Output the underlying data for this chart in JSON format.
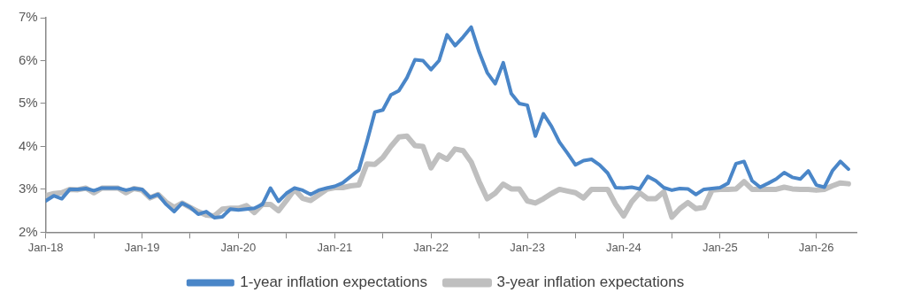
{
  "chart_data": {
    "type": "line",
    "x": [
      "2018-01",
      "2018-02",
      "2018-03",
      "2018-04",
      "2018-05",
      "2018-06",
      "2018-07",
      "2018-08",
      "2018-09",
      "2018-10",
      "2018-11",
      "2018-12",
      "2019-01",
      "2019-02",
      "2019-03",
      "2019-04",
      "2019-05",
      "2019-06",
      "2019-07",
      "2019-08",
      "2019-09",
      "2019-10",
      "2019-11",
      "2019-12",
      "2020-01",
      "2020-02",
      "2020-03",
      "2020-04",
      "2020-05",
      "2020-06",
      "2020-07",
      "2020-08",
      "2020-09",
      "2020-10",
      "2020-11",
      "2020-12",
      "2021-01",
      "2021-02",
      "2021-03",
      "2021-04",
      "2021-05",
      "2021-06",
      "2021-07",
      "2021-08",
      "2021-09",
      "2021-10",
      "2021-11",
      "2021-12",
      "2022-01",
      "2022-02",
      "2022-03",
      "2022-04",
      "2022-05",
      "2022-06",
      "2022-07",
      "2022-08",
      "2022-09",
      "2022-10",
      "2022-11",
      "2022-12",
      "2023-01",
      "2023-02",
      "2023-03",
      "2023-04",
      "2023-05",
      "2023-06",
      "2023-07",
      "2023-08",
      "2023-09",
      "2023-10",
      "2023-11",
      "2023-12",
      "2024-01",
      "2024-02",
      "2024-03",
      "2024-04",
      "2024-05",
      "2024-06",
      "2024-07",
      "2024-08",
      "2024-09",
      "2024-10",
      "2024-11",
      "2024-12",
      "2025-01",
      "2025-02",
      "2025-03",
      "2025-04",
      "2025-05",
      "2025-06",
      "2025-07",
      "2025-08",
      "2025-09",
      "2025-10",
      "2025-11",
      "2025-12",
      "2026-01",
      "2026-02",
      "2026-03",
      "2026-04",
      "2026-05"
    ],
    "series": [
      {
        "name": "1-year inflation expectations",
        "color": "#4a86c8",
        "values": [
          2.73,
          2.85,
          2.78,
          3.0,
          3.0,
          3.02,
          2.97,
          3.03,
          3.03,
          3.03,
          2.98,
          3.02,
          3.0,
          2.81,
          2.88,
          2.65,
          2.48,
          2.68,
          2.58,
          2.42,
          2.48,
          2.34,
          2.36,
          2.54,
          2.52,
          2.54,
          2.56,
          2.65,
          3.03,
          2.72,
          2.91,
          3.03,
          2.98,
          2.88,
          2.98,
          3.03,
          3.07,
          3.15,
          3.3,
          3.45,
          4.1,
          4.8,
          4.85,
          5.2,
          5.3,
          5.6,
          6.02,
          6.0,
          5.79,
          6.0,
          6.6,
          6.35,
          6.55,
          6.78,
          6.2,
          5.72,
          5.46,
          5.95,
          5.23,
          5.0,
          4.96,
          4.24,
          4.76,
          4.47,
          4.1,
          3.84,
          3.57,
          3.67,
          3.7,
          3.57,
          3.38,
          3.04,
          3.03,
          3.05,
          3.01,
          3.3,
          3.2,
          3.04,
          2.98,
          3.02,
          3.01,
          2.88,
          3.0,
          3.02,
          3.04,
          3.14,
          3.6,
          3.65,
          3.2,
          3.05,
          3.14,
          3.24,
          3.39,
          3.28,
          3.24,
          3.43,
          3.1,
          3.05,
          3.43,
          3.65,
          3.47
        ]
      },
      {
        "name": "3-year inflation expectations",
        "color": "#bfbfbf",
        "values": [
          2.85,
          2.9,
          2.92,
          3.0,
          2.99,
          3.03,
          2.92,
          3.03,
          3.03,
          3.03,
          2.92,
          3.02,
          2.98,
          2.8,
          2.88,
          2.7,
          2.58,
          2.68,
          2.58,
          2.48,
          2.4,
          2.38,
          2.54,
          2.56,
          2.56,
          2.62,
          2.46,
          2.65,
          2.65,
          2.5,
          2.74,
          3.0,
          2.79,
          2.74,
          2.87,
          3.0,
          3.04,
          3.04,
          3.08,
          3.1,
          3.59,
          3.58,
          3.74,
          4.0,
          4.22,
          4.24,
          4.02,
          4.0,
          3.5,
          3.8,
          3.7,
          3.94,
          3.9,
          3.64,
          3.18,
          2.78,
          2.91,
          3.12,
          3.01,
          3.01,
          2.73,
          2.68,
          2.78,
          2.9,
          3.0,
          2.96,
          2.92,
          2.8,
          3.0,
          3.0,
          3.0,
          2.65,
          2.38,
          2.71,
          2.92,
          2.78,
          2.78,
          2.94,
          2.35,
          2.55,
          2.69,
          2.55,
          2.58,
          2.98,
          3.0,
          3.0,
          3.01,
          3.18,
          3.0,
          3.0,
          3.0,
          3.0,
          3.05,
          3.01,
          3.0,
          3.0,
          2.98,
          3.0,
          3.08,
          3.15,
          3.13
        ]
      }
    ],
    "xlim": [
      "2018-01",
      "2026-06"
    ],
    "xticks": [
      {
        "value": "2018-01",
        "label": "Jan-18"
      },
      {
        "value": "2018-07",
        "label": null
      },
      {
        "value": "2019-01",
        "label": "Jan-19"
      },
      {
        "value": "2019-07",
        "label": null
      },
      {
        "value": "2020-01",
        "label": "Jan-20"
      },
      {
        "value": "2020-07",
        "label": null
      },
      {
        "value": "2021-01",
        "label": "Jan-21"
      },
      {
        "value": "2021-07",
        "label": null
      },
      {
        "value": "2022-01",
        "label": "Jan-22"
      },
      {
        "value": "2022-07",
        "label": null
      },
      {
        "value": "2023-01",
        "label": "Jan-23"
      },
      {
        "value": "2023-07",
        "label": null
      },
      {
        "value": "2024-01",
        "label": "Jan-24"
      },
      {
        "value": "2024-07",
        "label": null
      },
      {
        "value": "2025-01",
        "label": "Jan-25"
      },
      {
        "value": "2025-07",
        "label": null
      },
      {
        "value": "2026-01",
        "label": "Jan-26"
      }
    ],
    "ylim": [
      2,
      7
    ],
    "yticks": [
      {
        "value": 2,
        "label": "2%"
      },
      {
        "value": 3,
        "label": "3%"
      },
      {
        "value": 4,
        "label": "4%"
      },
      {
        "value": 5,
        "label": "5%"
      },
      {
        "value": 6,
        "label": "6%"
      },
      {
        "value": 7,
        "label": "7%"
      }
    ],
    "grid": false,
    "legend": "bottom",
    "marker": "none",
    "line_style": "solid"
  }
}
